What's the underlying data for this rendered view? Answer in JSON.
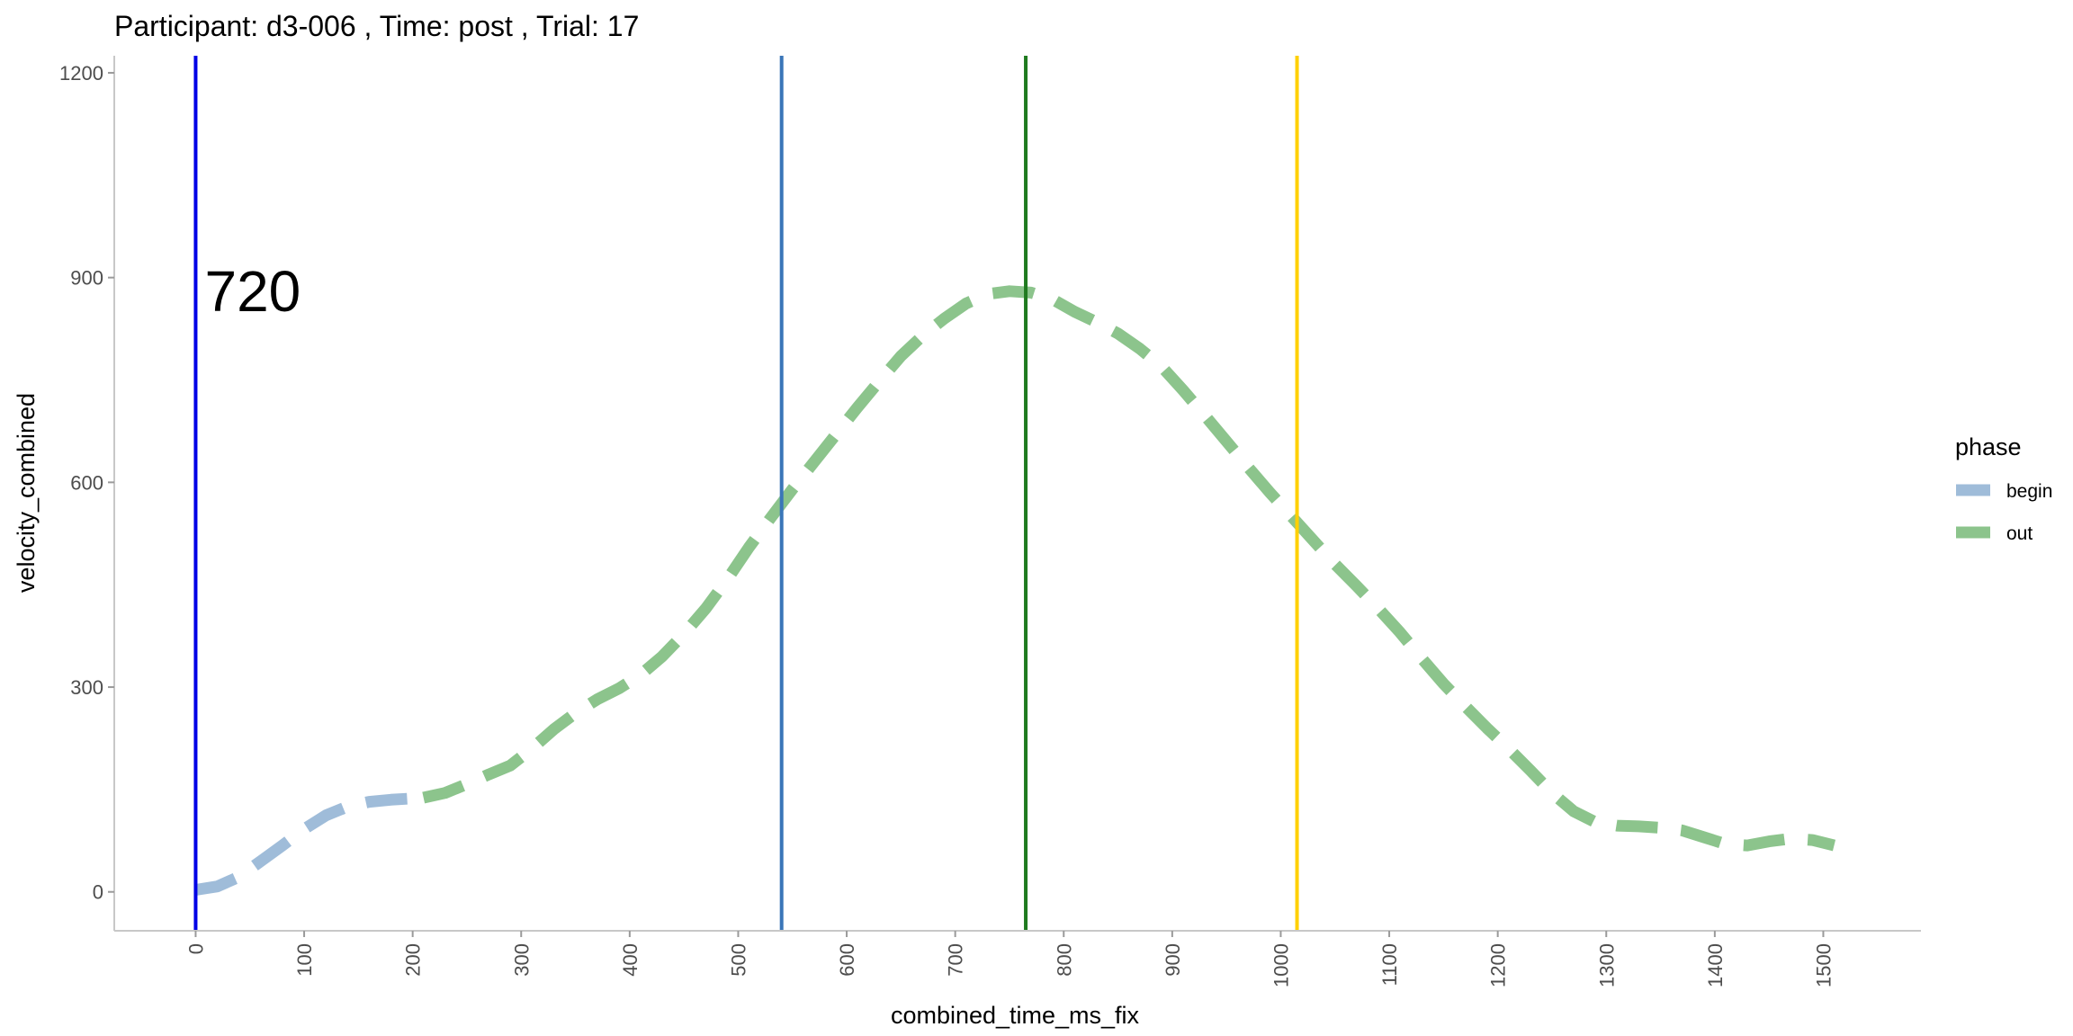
{
  "chart_data": {
    "type": "line",
    "title": "Participant:  d3-006 , Time: post , Trial:  17",
    "xlabel": "combined_time_ms_fix",
    "ylabel": "velocity_combined",
    "xlim": [
      -75,
      1590
    ],
    "ylim": [
      -57,
      1225
    ],
    "x_ticks": [
      0,
      100,
      200,
      300,
      400,
      500,
      600,
      700,
      800,
      900,
      1000,
      1100,
      1200,
      1300,
      1400,
      1500
    ],
    "y_ticks": [
      0,
      300,
      600,
      900,
      1200
    ],
    "grid": false,
    "legend": {
      "title": "phase",
      "position": "right",
      "entries": [
        {
          "label": "begin",
          "color": "#9fbcd9"
        },
        {
          "label": "out",
          "color": "#8cc48c"
        }
      ]
    },
    "series": [
      {
        "name": "begin",
        "color": "#9fbcd9",
        "dashed": true,
        "x": [
          0,
          20,
          40,
          60,
          80,
          100,
          120,
          140,
          160,
          180,
          200,
          210
        ],
        "y": [
          3,
          8,
          22,
          45,
          68,
          92,
          112,
          125,
          132,
          135,
          137,
          138
        ]
      },
      {
        "name": "out",
        "color": "#8cc48c",
        "dashed": true,
        "x": [
          210,
          230,
          250,
          270,
          290,
          310,
          330,
          350,
          370,
          390,
          410,
          430,
          450,
          470,
          490,
          510,
          530,
          550,
          570,
          590,
          610,
          630,
          650,
          670,
          690,
          710,
          730,
          750,
          770,
          790,
          810,
          830,
          850,
          870,
          890,
          910,
          930,
          950,
          970,
          990,
          1010,
          1030,
          1050,
          1070,
          1090,
          1110,
          1130,
          1150,
          1170,
          1190,
          1210,
          1230,
          1250,
          1270,
          1290,
          1310,
          1330,
          1350,
          1370,
          1390,
          1410,
          1430,
          1450,
          1470,
          1490,
          1510
        ],
        "y": [
          138,
          145,
          158,
          172,
          185,
          210,
          238,
          262,
          282,
          298,
          318,
          345,
          378,
          415,
          458,
          505,
          548,
          590,
          630,
          670,
          710,
          748,
          785,
          815,
          840,
          862,
          876,
          880,
          878,
          868,
          850,
          835,
          818,
          796,
          770,
          735,
          698,
          660,
          622,
          585,
          550,
          515,
          480,
          448,
          415,
          380,
          342,
          305,
          272,
          240,
          210,
          178,
          145,
          118,
          102,
          97,
          96,
          94,
          90,
          80,
          70,
          68,
          74,
          78,
          76,
          68
        ]
      }
    ],
    "vlines": [
      {
        "x": 0,
        "color": "#0000e6"
      },
      {
        "x": 540,
        "color": "#3a76b8"
      },
      {
        "x": 765,
        "color": "#1f7a1f"
      },
      {
        "x": 1015,
        "color": "#ffd000"
      }
    ],
    "annotations": [
      {
        "text": "720",
        "x": 5,
        "y": 880
      }
    ]
  }
}
